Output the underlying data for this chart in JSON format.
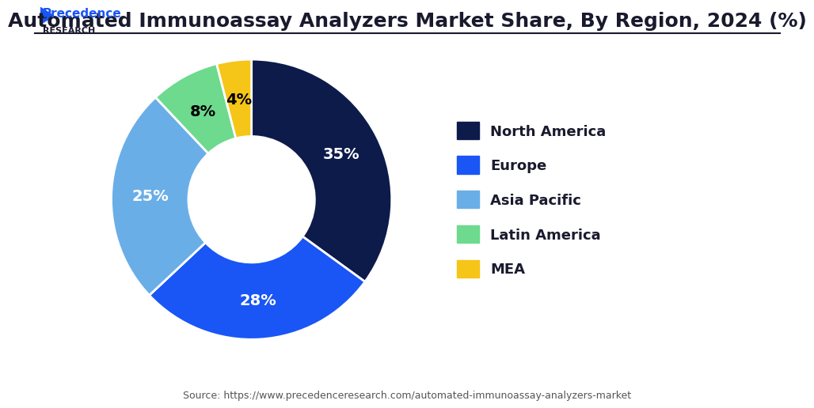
{
  "title": "Automated Immunoassay Analyzers Market Share, By Region, 2024 (%)",
  "labels": [
    "North America",
    "Europe",
    "Asia Pacific",
    "Latin America",
    "MEA"
  ],
  "values": [
    35,
    28,
    25,
    8,
    4
  ],
  "colors": [
    "#0d1b4b",
    "#1a56f5",
    "#6aaee8",
    "#6dda8e",
    "#f5c518"
  ],
  "pct_labels": [
    "35%",
    "28%",
    "25%",
    "8%",
    "4%"
  ],
  "pct_label_colors": [
    "white",
    "white",
    "white",
    "black",
    "black"
  ],
  "background_color": "#ffffff",
  "source_text": "Source: https://www.precedenceresearch.com/automated-immunoassay-analyzers-market",
  "logo_text": "Precedence\nRESEARCH",
  "title_fontsize": 18,
  "legend_fontsize": 13,
  "pct_fontsize": 14
}
